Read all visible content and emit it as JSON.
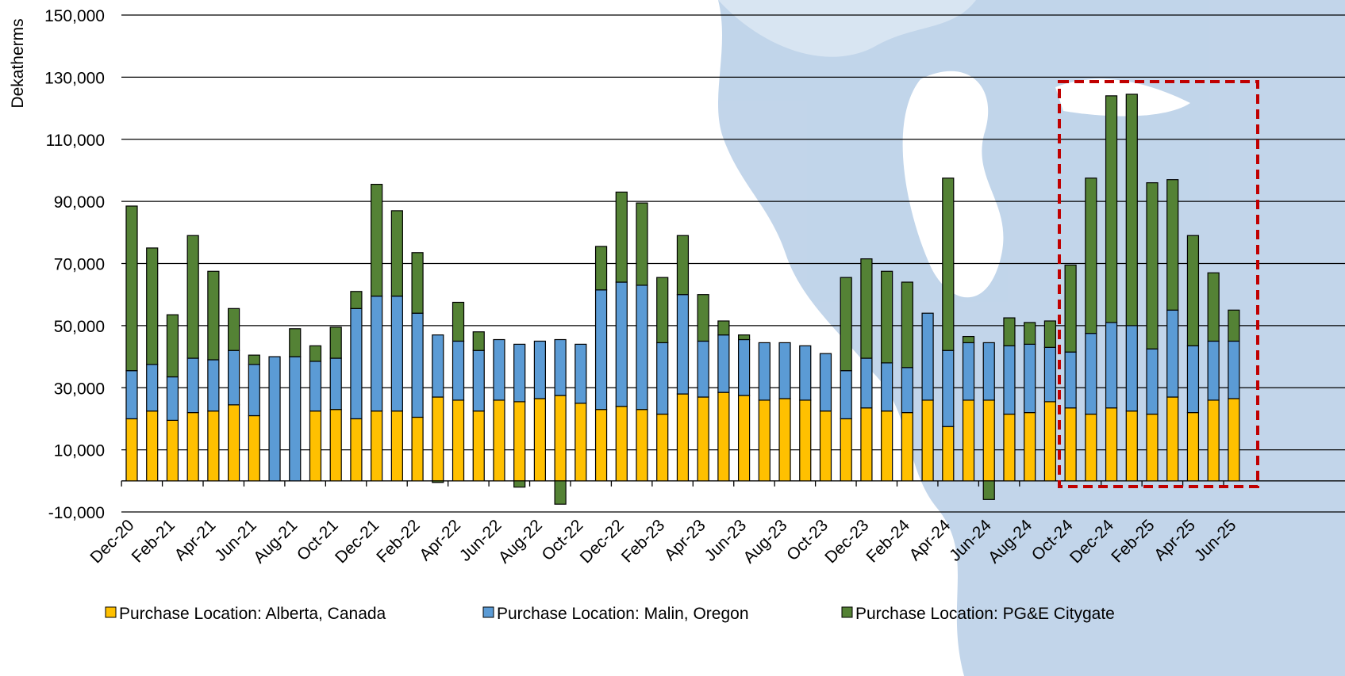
{
  "chart_data": {
    "type": "bar",
    "stacked": true,
    "y_label": "Dekatherms",
    "categories": [
      "Dec-20",
      null,
      "Feb-21",
      null,
      "Apr-21",
      null,
      "Jun-21",
      null,
      "Aug-21",
      null,
      "Oct-21",
      null,
      "Dec-21",
      null,
      "Feb-22",
      null,
      "Apr-22",
      null,
      "Jun-22",
      null,
      "Aug-22",
      null,
      "Oct-22",
      null,
      "Dec-22",
      null,
      "Feb-23",
      null,
      "Apr-23",
      null,
      "Jun-23",
      null,
      "Aug-23",
      null,
      "Oct-23",
      null,
      "Dec-23",
      null,
      "Feb-24",
      null,
      "Apr-24",
      null,
      "Jun-24",
      null,
      "Aug-24",
      null,
      "Oct-24",
      null,
      "Dec-24",
      null,
      "Feb-25",
      null,
      "Apr-25",
      null,
      "Jun-25"
    ],
    "series": [
      {
        "name": "Purchase Location: Alberta, Canada",
        "color": "#ffc000",
        "values": [
          20000,
          22500,
          19500,
          22000,
          22500,
          24500,
          21000,
          0,
          0,
          22500,
          23000,
          20000,
          22500,
          22500,
          20500,
          27000,
          26000,
          22500,
          26000,
          25500,
          26500,
          27500,
          25000,
          23000,
          24000,
          23000,
          21500,
          28000,
          27000,
          28500,
          27500,
          26000,
          26500,
          26000,
          22500,
          20000,
          23500,
          22500,
          22000,
          26000,
          17500,
          26000,
          26000,
          21500,
          22000,
          25500,
          23500,
          21500,
          23500,
          22500,
          21500,
          27000,
          22000,
          26000,
          26500
        ]
      },
      {
        "name": "Purchase Location: Malin, Oregon",
        "color": "#5b9bd5",
        "values": [
          15500,
          15000,
          14000,
          17500,
          16500,
          17500,
          16500,
          40000,
          40000,
          16000,
          16500,
          35500,
          37000,
          37000,
          33500,
          20000,
          19000,
          19500,
          19500,
          18500,
          18500,
          18000,
          19000,
          38500,
          40000,
          40000,
          23000,
          32000,
          18000,
          18500,
          18000,
          18500,
          18000,
          17500,
          18500,
          15500,
          16000,
          15500,
          14500,
          28000,
          24500,
          18500,
          18500,
          22000,
          22000,
          17500,
          18000,
          26000,
          27500,
          27500,
          21000,
          28000,
          21500,
          19000,
          18500
        ]
      },
      {
        "name": "Purchase Location: PG&E Citygate",
        "color": "#548235",
        "values": [
          53000,
          37500,
          20000,
          39500,
          28500,
          13500,
          3000,
          0,
          9000,
          5000,
          10000,
          5500,
          36000,
          27500,
          19500,
          -500,
          12500,
          6000,
          0,
          -2000,
          0,
          -7500,
          0,
          14000,
          29000,
          26500,
          21000,
          19000,
          15000,
          4500,
          1500,
          0,
          0,
          0,
          0,
          30000,
          32000,
          29500,
          27500,
          0,
          55500,
          2000,
          -6000,
          9000,
          7000,
          8500,
          28000,
          50000,
          73000,
          74500,
          53500,
          42000,
          35500,
          22000,
          10000
        ]
      }
    ],
    "ylim": [
      -10000,
      150000
    ],
    "yticks": [
      {
        "value": -10000,
        "label": "-10,000"
      },
      {
        "value": 10000,
        "label": "10,000"
      },
      {
        "value": 30000,
        "label": "30,000"
      },
      {
        "value": 50000,
        "label": "50,000"
      },
      {
        "value": 70000,
        "label": "70,000"
      },
      {
        "value": 90000,
        "label": "90,000"
      },
      {
        "value": 110000,
        "label": "110,000"
      },
      {
        "value": 130000,
        "label": "130,000"
      },
      {
        "value": 150000,
        "label": "150,000"
      }
    ],
    "grid": true,
    "legend": "bottom"
  }
}
